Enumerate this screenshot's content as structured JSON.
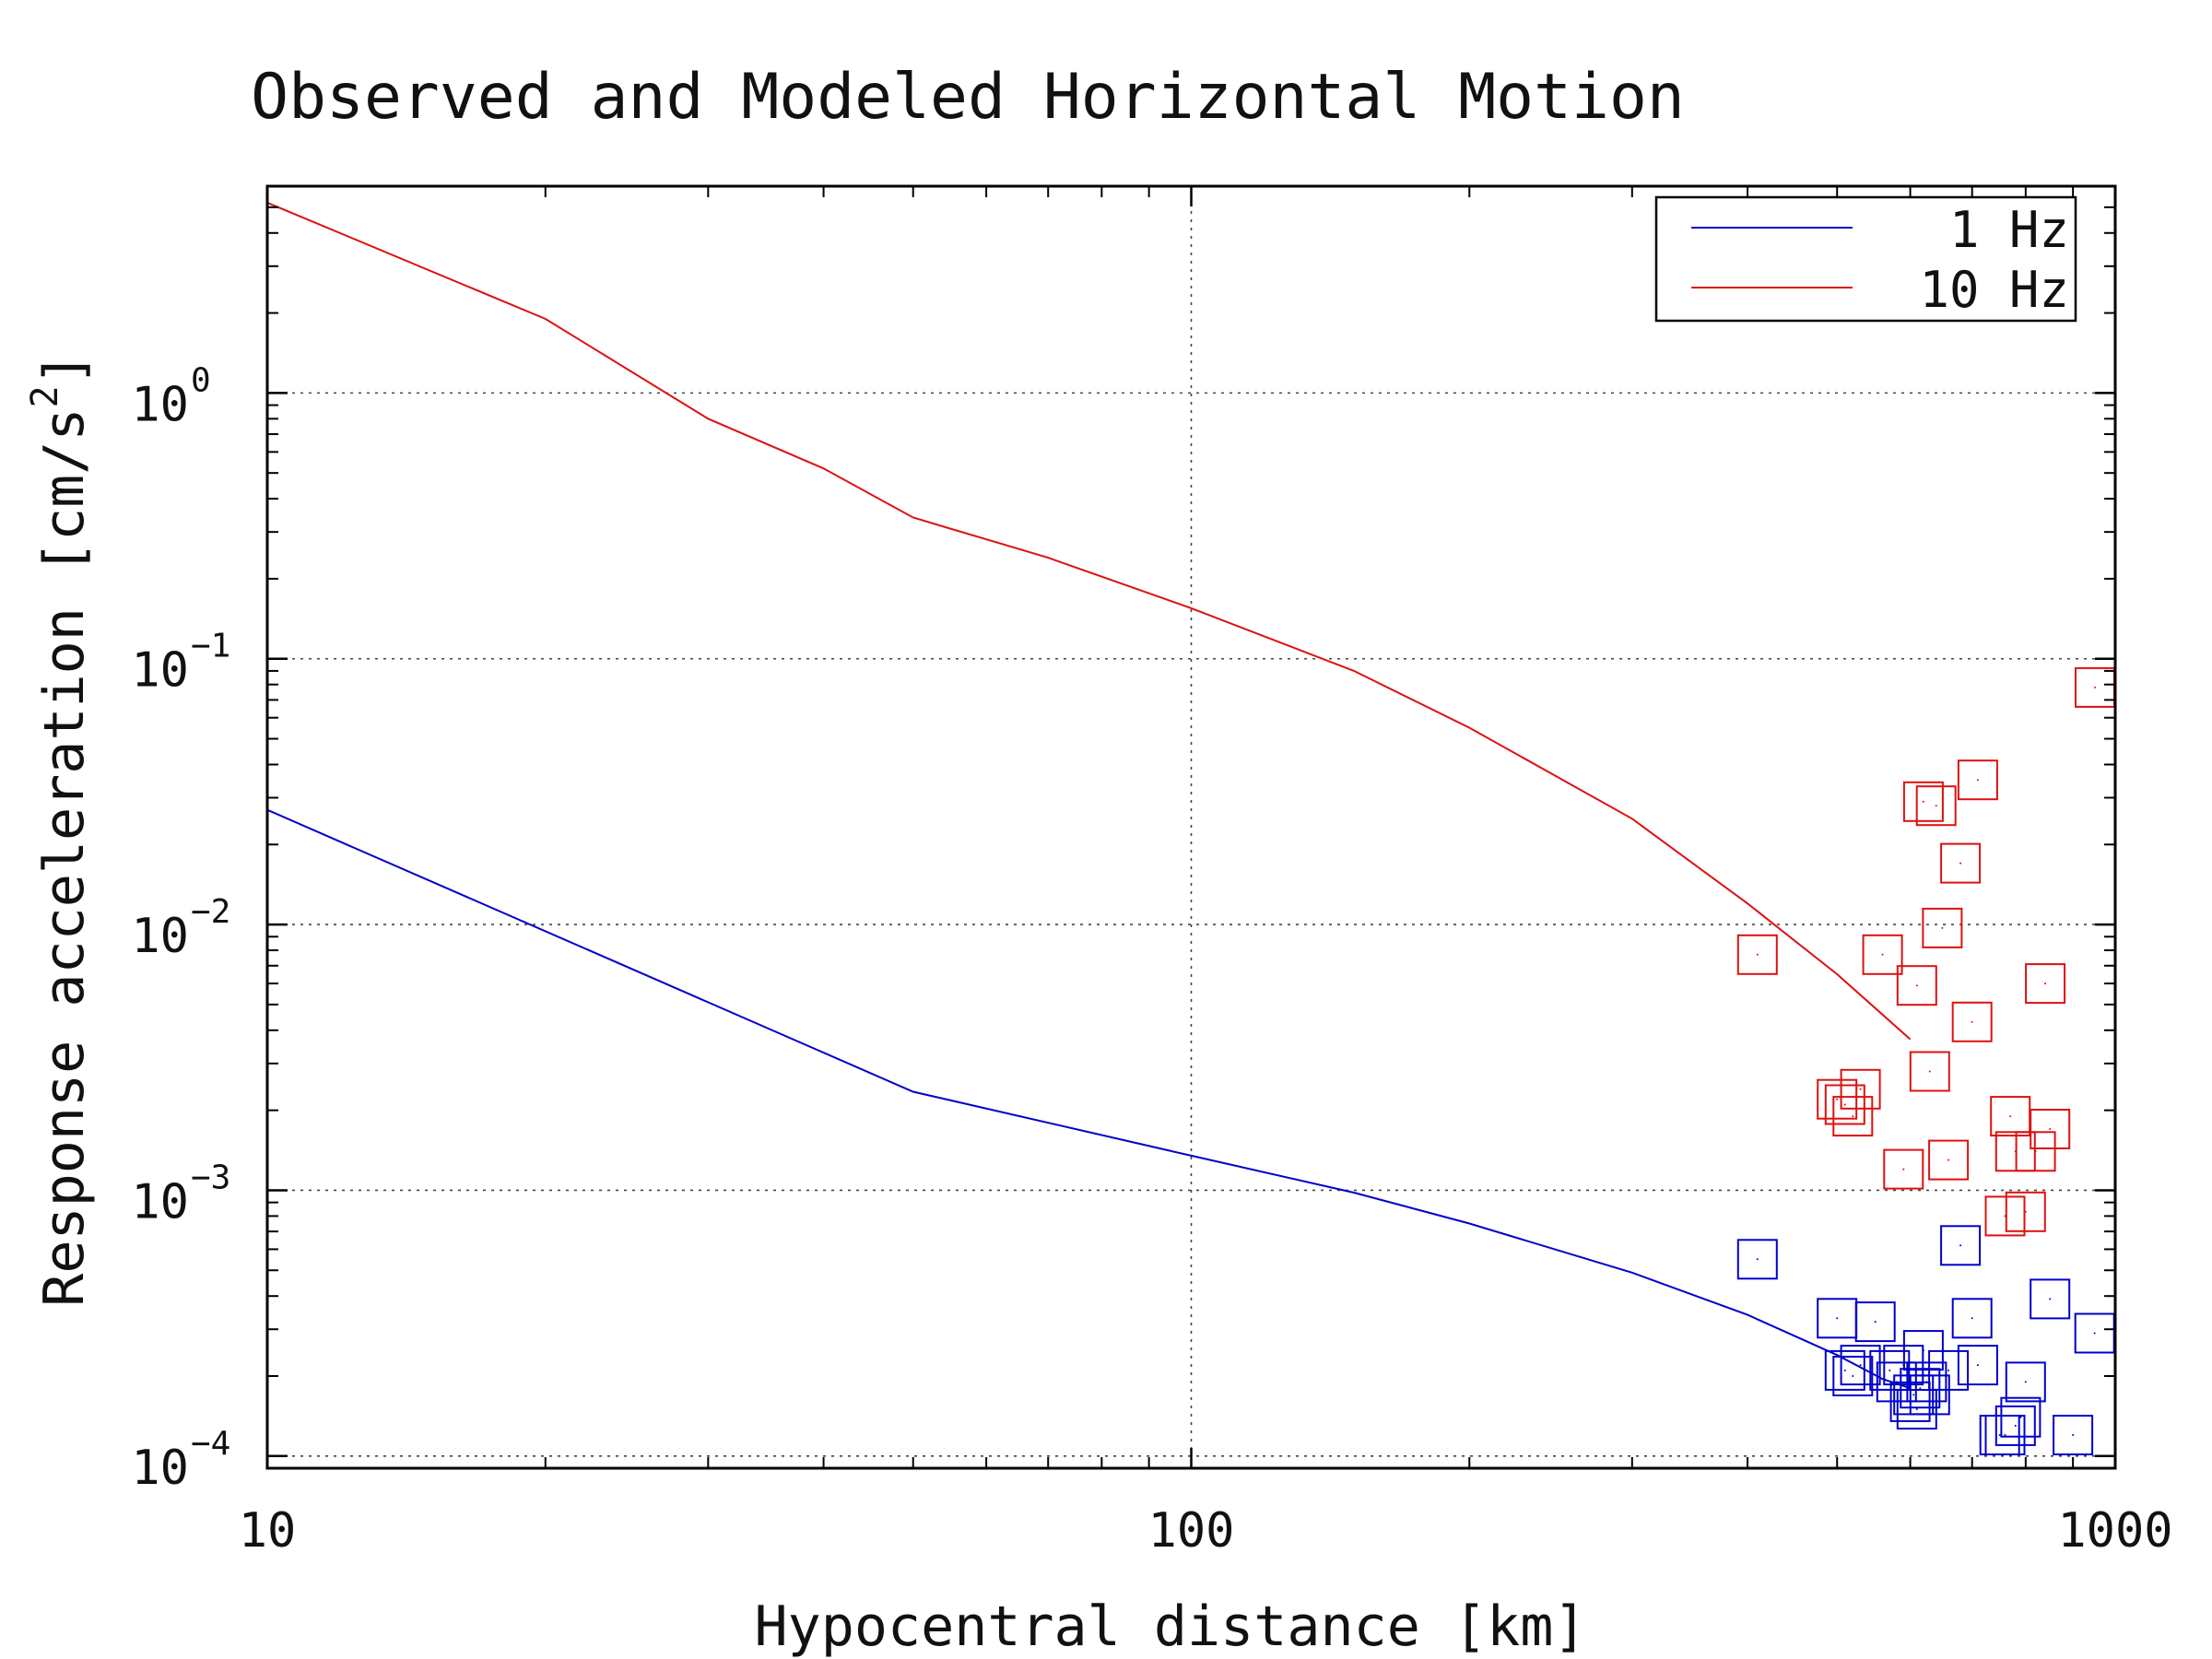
{
  "chart_data": {
    "type": "line",
    "title": "Observed and Modeled Horizontal Motion",
    "xlabel": "Hypocentral distance [km]",
    "ylabel_text": "Response acceleration [cm/s",
    "ylabel_sup": "2",
    "ylabel_close": "]",
    "xscale": "log",
    "yscale": "log",
    "xlim": [
      10,
      1000
    ],
    "ylim": [
      9e-05,
      6
    ],
    "grid": true,
    "legend_position": "top-right",
    "x_ticks": [
      {
        "value": 10,
        "label": "10"
      },
      {
        "value": 100,
        "label": "100"
      },
      {
        "value": 1000,
        "label": "1000"
      }
    ],
    "y_ticks": [
      {
        "value": 1,
        "base": "10",
        "exp": "0"
      },
      {
        "value": 0.1,
        "base": "10",
        "exp": "−1"
      },
      {
        "value": 0.01,
        "base": "10",
        "exp": "−2"
      },
      {
        "value": 0.001,
        "base": "10",
        "exp": "−3"
      },
      {
        "value": 0.0001,
        "base": "10",
        "exp": "−4"
      }
    ],
    "series": [
      {
        "name": "1 Hz",
        "color": "#0000cc",
        "model": {
          "x": [
            10,
            50,
            100,
            150,
            200,
            300,
            400,
            500,
            560,
            600
          ],
          "y": [
            0.027,
            0.00235,
            0.00135,
            0.00098,
            0.00075,
            0.00049,
            0.00034,
            0.00024,
            0.000195,
            0.00018
          ]
        },
        "observed": {
          "x": [
            410,
            500,
            510,
            520,
            530,
            550,
            570,
            580,
            590,
            600,
            605,
            610,
            615,
            620,
            625,
            630,
            660,
            680,
            700,
            710,
            750,
            760,
            780,
            790,
            800,
            850,
            900,
            950
          ],
          "y": [
            0.00055,
            0.00033,
            0.00021,
            0.0002,
            0.00022,
            0.00032,
            0.00021,
            0.00019,
            0.00022,
            0.00016,
            0.00017,
            0.00015,
            0.00018,
            0.00025,
            0.00019,
            0.00017,
            0.00021,
            0.00062,
            0.00033,
            0.00022,
            0.00012,
            0.00012,
            0.00013,
            0.00014,
            0.00019,
            0.00039,
            0.00012,
            0.00029
          ]
        }
      },
      {
        "name": "10 Hz",
        "color": "#dd1111",
        "model": {
          "x": [
            10,
            20,
            30,
            40,
            50,
            70,
            100,
            150,
            200,
            300,
            400,
            500,
            600
          ],
          "y": [
            5.2,
            1.9,
            0.8,
            0.52,
            0.34,
            0.24,
            0.155,
            0.09,
            0.055,
            0.025,
            0.012,
            0.0065,
            0.0037
          ]
        },
        "observed": {
          "x": [
            410,
            500,
            510,
            520,
            530,
            560,
            590,
            610,
            620,
            630,
            640,
            650,
            660,
            680,
            700,
            710,
            760,
            770,
            780,
            800,
            820,
            840,
            850,
            1000
          ],
          "y": [
            0.0077,
            0.0022,
            0.0021,
            0.0019,
            0.0024,
            0.0077,
            0.0012,
            0.0059,
            0.029,
            0.0028,
            0.028,
            0.0097,
            0.0013,
            0.017,
            0.0043,
            0.035,
            0.0008,
            0.0019,
            0.0014,
            0.00083,
            0.0014,
            0.006,
            0.0017,
            0.078
          ]
        }
      }
    ]
  }
}
